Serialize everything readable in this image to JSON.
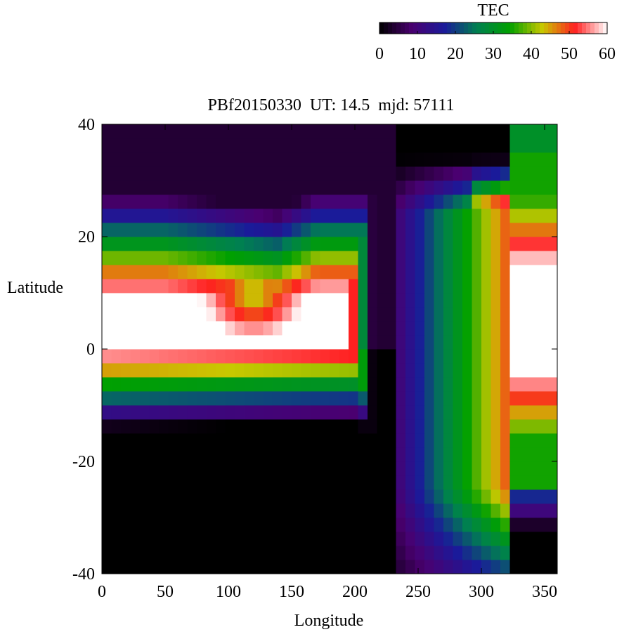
{
  "chart_data": {
    "type": "heatmap",
    "title": "PBf20150330  UT: 14.5  mjd: 57111",
    "xlabel": "Longitude",
    "ylabel": "Latitude",
    "xlim": [
      0,
      360
    ],
    "ylim": [
      -40,
      40
    ],
    "xticks": [
      "0",
      "50",
      "100",
      "150",
      "200",
      "250",
      "300",
      "350"
    ],
    "yticks": [
      "-40",
      "-20",
      "0",
      "20",
      "40"
    ],
    "grid": false,
    "grid_resolution": {
      "longitude_step": 7.5,
      "latitude_step": 2.5
    },
    "colorbar": {
      "label": "TEC",
      "range": [
        0,
        60
      ],
      "ticks": [
        "0",
        "10",
        "20",
        "30",
        "40",
        "50",
        "60"
      ],
      "placement": "top-right",
      "colors": [
        "#000000",
        "#4a0070",
        "#1a1a9a",
        "#008050",
        "#00a000",
        "#c8c800",
        "#ff2020",
        "#ffffff"
      ]
    },
    "features": [
      {
        "name": "high-TEC region west",
        "longitude_range": [
          0,
          200
        ],
        "latitude_range": [
          -15,
          28
        ],
        "tec": 60
      },
      {
        "name": "high-TEC region east",
        "longitude_range": [
          320,
          360
        ],
        "latitude_range": [
          -15,
          27
        ],
        "tec": 60
      },
      {
        "name": "low-TEC trough",
        "longitude_range": [
          210,
          270
        ],
        "latitude_range": [
          -40,
          40
        ],
        "tec": 10
      },
      {
        "name": "low-TEC north",
        "longitude_range": [
          220,
          320
        ],
        "latitude_range": [
          24,
          40
        ],
        "tec": 0
      },
      {
        "name": "low-TEC south",
        "longitude_range": [
          0,
          240
        ],
        "latitude_range": [
          -40,
          -25
        ],
        "tec": 0
      }
    ]
  }
}
